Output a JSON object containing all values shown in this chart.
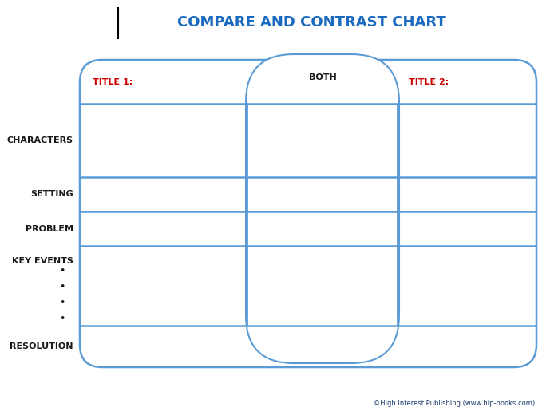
{
  "title": "COMPARE AND CONTRAST CHART",
  "title_color": "#1a6abf",
  "title_fontsize": 13,
  "copyright": "©High Interest Publishing (www.hip-books.com)",
  "copyright_color": "#1a3a6e",
  "border_color": "#5b9bd5",
  "line_color": "#5b9bd5",
  "label_color": "#1a1a1a",
  "col_label_color": "#cc0000",
  "both_label_color": "#1a1a1a",
  "background": "#ffffff",
  "row_labels": [
    "CHARACTERS",
    "SETTING",
    "PROBLEM",
    "KEY EVENTS",
    "RESOLUTION"
  ],
  "col_labels": [
    "TITLE 1:",
    "BOTH",
    "TITLE 2:"
  ],
  "bullets": 4
}
